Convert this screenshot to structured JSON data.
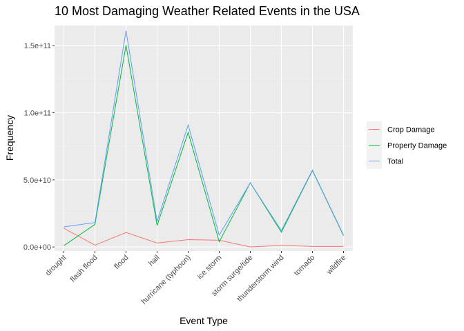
{
  "chart_data": {
    "type": "line",
    "title": "10 Most Damaging Weather Related Events in the USA",
    "xlabel": "Event Type",
    "ylabel": "Frequency",
    "categories": [
      "drought",
      "flash flood",
      "flood",
      "hail",
      "hurricane (typhoon)",
      "ice storm",
      "storm surge/tide",
      "thunderstorm wind",
      "tornado",
      "wildfire"
    ],
    "ylim": [
      -3000000000,
      165000000000
    ],
    "yticks": [
      0,
      50000000000,
      100000000000,
      150000000000
    ],
    "ytick_labels": [
      "0.0e+00",
      "5.0e+10",
      "1.0e+11",
      "1.5e+11"
    ],
    "grid": true,
    "legend_position": "right",
    "series": [
      {
        "name": "Crop Damage",
        "color": "#F8766D",
        "values": [
          13900000000,
          1400000000,
          10800000000,
          3000000000,
          5500000000,
          5000000000,
          0,
          1200000000,
          400000000,
          400000000
        ]
      },
      {
        "name": "Property Damage",
        "color": "#00BA38",
        "values": [
          1000000000,
          16800000000,
          150300000000,
          16000000000,
          85400000000,
          3900000000,
          47800000000,
          11000000000,
          56900000000,
          8500000000
        ]
      },
      {
        "name": "Total",
        "color": "#619CFF",
        "values": [
          15000000000,
          18200000000,
          161100000000,
          19000000000,
          90900000000,
          8900000000,
          47800000000,
          12200000000,
          57300000000,
          8900000000
        ]
      }
    ]
  }
}
